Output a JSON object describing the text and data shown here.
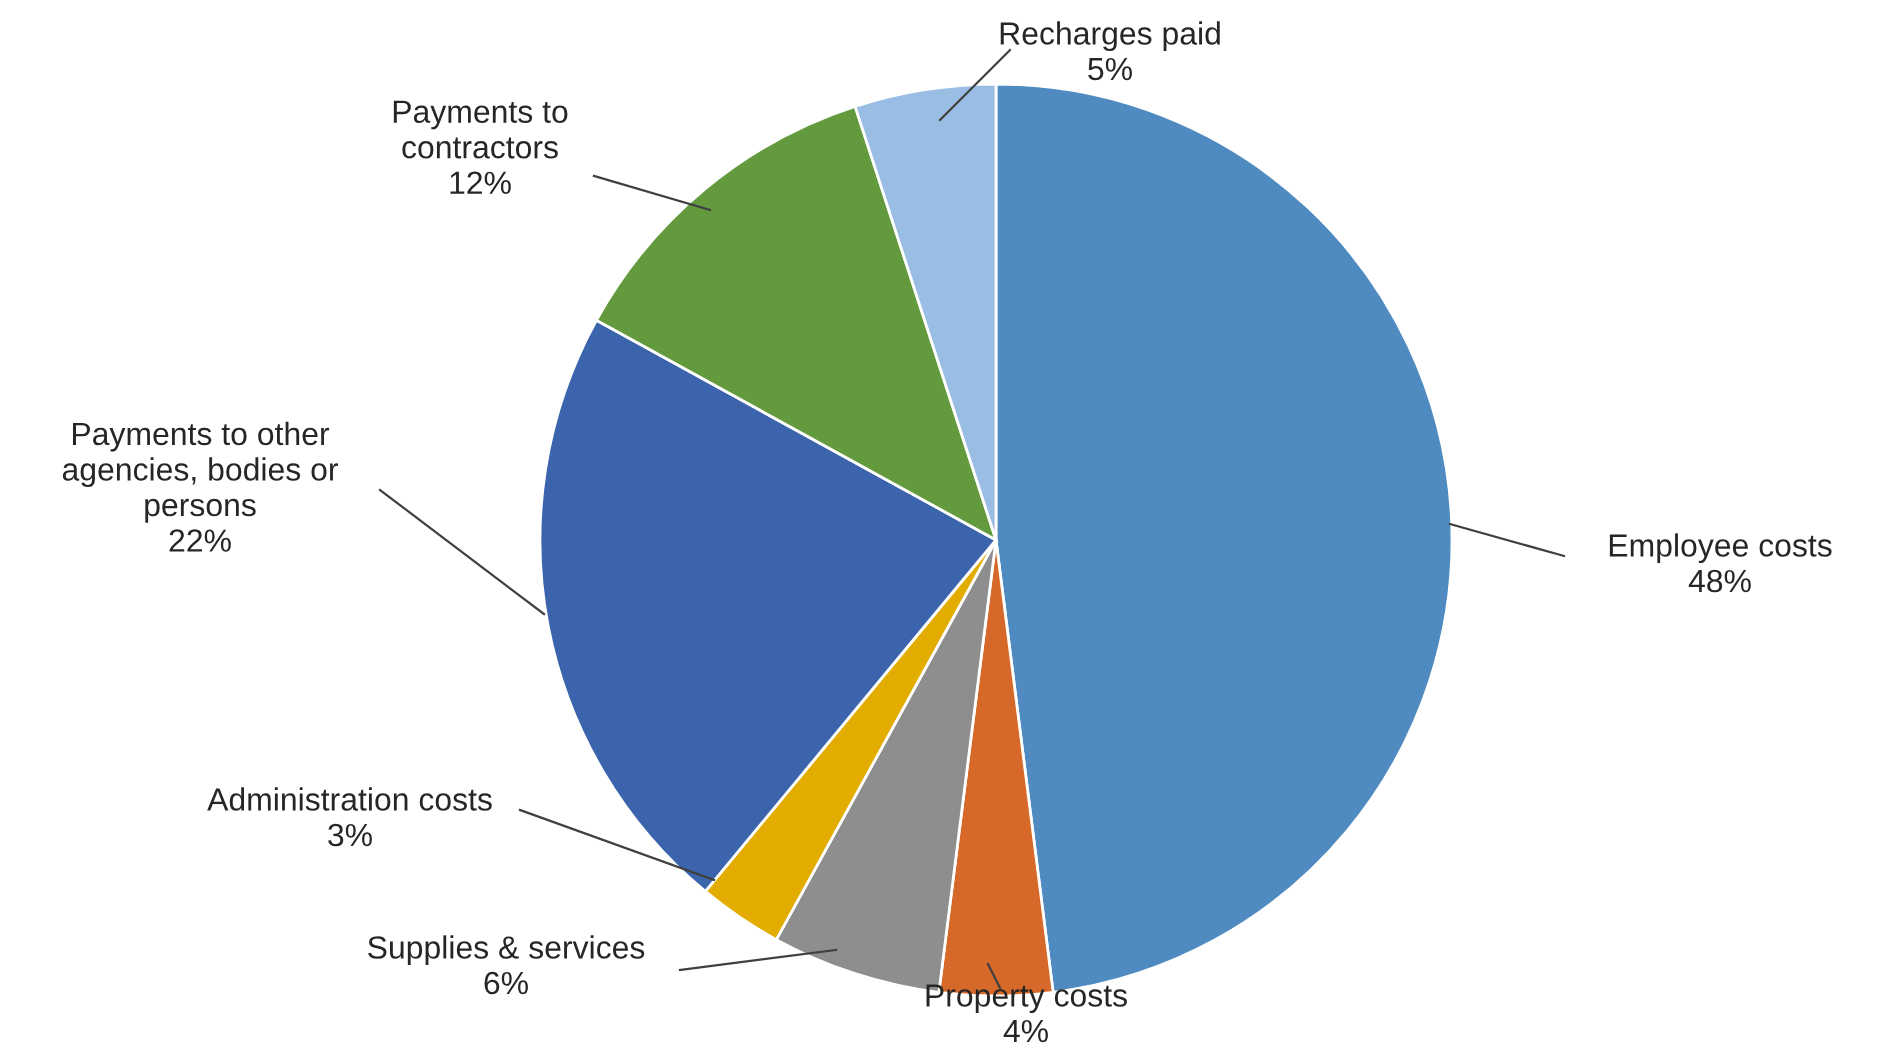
{
  "chart_data": {
    "type": "pie",
    "categories": [
      "Employee costs",
      "Property costs",
      "Supplies & services",
      "Administration costs",
      "Payments to other agencies, bodies or persons",
      "Payments to contractors",
      "Recharges paid"
    ],
    "values": [
      48,
      4,
      6,
      3,
      22,
      12,
      5
    ],
    "value_labels": [
      "48%",
      "4%",
      "6%",
      "3%",
      "22%",
      "12%",
      "5%"
    ],
    "colors": [
      "#4f8bc0",
      "#d6692a",
      "#8e8e8e",
      "#e2ac00",
      "#3c64ad",
      "#629a3d",
      "#9abde3"
    ],
    "legend": false
  }
}
